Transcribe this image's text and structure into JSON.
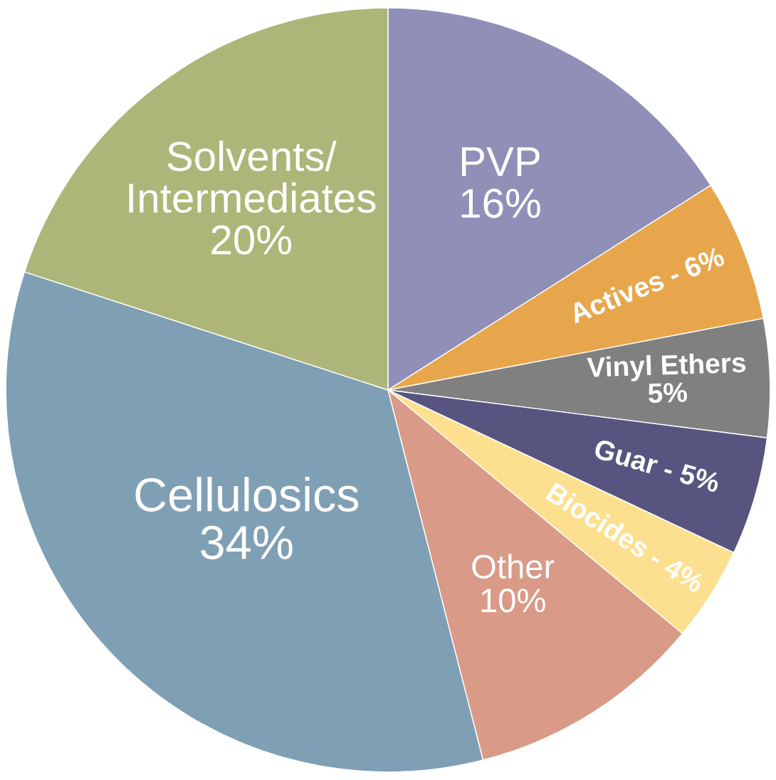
{
  "chart_data": {
    "type": "pie",
    "categories": [
      "PVP\n16%",
      "Actives - 6%",
      "Vinyl Ethers\n5%",
      "Guar - 5%",
      "Biocides - 4%",
      "Other\n10%",
      "Cellulosics\n34%",
      "Solvents/\nIntermediates\n20%"
    ],
    "values": [
      16,
      6,
      5,
      5,
      4,
      10,
      34,
      20
    ],
    "colors": [
      "#8f8fb8",
      "#e8a64c",
      "#808080",
      "#575580",
      "#fde08f",
      "#d99a87",
      "#7f9fb5",
      "#adb678"
    ],
    "legend": false
  }
}
